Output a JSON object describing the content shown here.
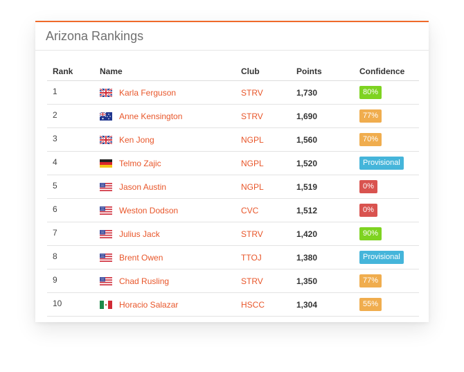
{
  "card": {
    "title": "Arizona Rankings"
  },
  "columns": {
    "rank": "Rank",
    "name": "Name",
    "club": "Club",
    "points": "Points",
    "confidence": "Confidence"
  },
  "colors": {
    "accent": "#f06a2a",
    "link": "#e8562a",
    "green": "#7ed321",
    "orange": "#f0ad4e",
    "blue": "#45b5da",
    "red": "#d9534f"
  },
  "rows": [
    {
      "rank": "1",
      "flag": "uk-flag-icon",
      "name": "Karla Ferguson",
      "club": "STRV",
      "points": "1,730",
      "confidence": "80%",
      "status": "green"
    },
    {
      "rank": "2",
      "flag": "australia-flag-icon",
      "name": "Anne Kensington",
      "club": "STRV",
      "points": "1,690",
      "confidence": "77%",
      "status": "orange"
    },
    {
      "rank": "3",
      "flag": "uk-flag-icon",
      "name": "Ken Jong",
      "club": "NGPL",
      "points": "1,560",
      "confidence": "70%",
      "status": "orange"
    },
    {
      "rank": "4",
      "flag": "germany-flag-icon",
      "name": "Telmo Zajic",
      "club": "NGPL",
      "points": "1,520",
      "confidence": "Provisional",
      "status": "blue"
    },
    {
      "rank": "5",
      "flag": "usa-flag-icon",
      "name": "Jason Austin",
      "club": "NGPL",
      "points": "1,519",
      "confidence": "0%",
      "status": "red"
    },
    {
      "rank": "6",
      "flag": "usa-flag-icon",
      "name": "Weston Dodson",
      "club": "CVC",
      "points": "1,512",
      "confidence": "0%",
      "status": "red"
    },
    {
      "rank": "7",
      "flag": "usa-flag-icon",
      "name": "Julius Jack",
      "club": "STRV",
      "points": "1,420",
      "confidence": "90%",
      "status": "green"
    },
    {
      "rank": "8",
      "flag": "usa-flag-icon",
      "name": "Brent Owen",
      "club": "TTOJ",
      "points": "1,380",
      "confidence": "Provisional",
      "status": "blue"
    },
    {
      "rank": "9",
      "flag": "usa-flag-icon",
      "name": "Chad Rusling",
      "club": "STRV",
      "points": "1,350",
      "confidence": "77%",
      "status": "orange"
    },
    {
      "rank": "10",
      "flag": "mexico-flag-icon",
      "name": "Horacio Salazar",
      "club": "HSCC",
      "points": "1,304",
      "confidence": "55%",
      "status": "orange"
    }
  ]
}
